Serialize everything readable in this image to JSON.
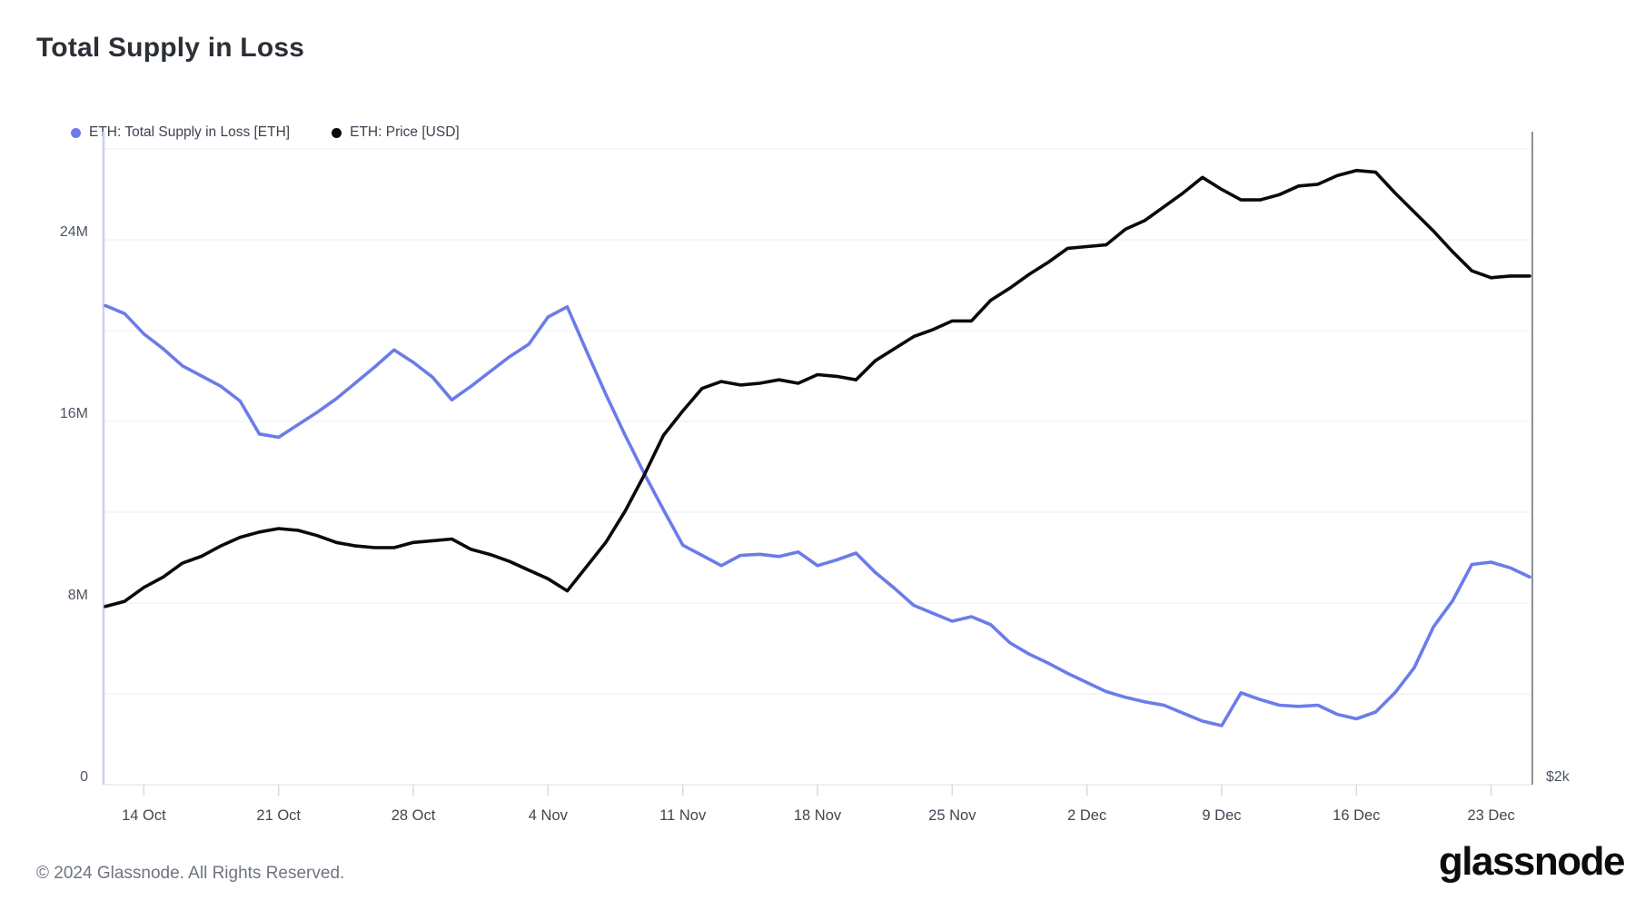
{
  "header": {
    "title": "Total Supply in Loss"
  },
  "legend": {
    "items": [
      {
        "label": "ETH: Total Supply in Loss [ETH]",
        "color": "#6b7ce9"
      },
      {
        "label": "ETH: Price [USD]",
        "color": "#0a0a0a"
      }
    ]
  },
  "footer": {
    "copyright": "© 2024 Glassnode. All Rights Reserved.",
    "brand": "glassnode"
  },
  "chart_data": {
    "type": "line",
    "title": "Total Supply in Loss",
    "grid": "horizontal-only",
    "legend_position": "top-left",
    "dates": [
      "12 Oct",
      "13 Oct",
      "14 Oct",
      "15 Oct",
      "16 Oct",
      "17 Oct",
      "18 Oct",
      "19 Oct",
      "20 Oct",
      "21 Oct",
      "22 Oct",
      "23 Oct",
      "24 Oct",
      "25 Oct",
      "26 Oct",
      "27 Oct",
      "28 Oct",
      "29 Oct",
      "30 Oct",
      "31 Oct",
      "1 Nov",
      "2 Nov",
      "3 Nov",
      "4 Nov",
      "5 Nov",
      "6 Nov",
      "7 Nov",
      "8 Nov",
      "9 Nov",
      "10 Nov",
      "11 Nov",
      "12 Nov",
      "13 Nov",
      "14 Nov",
      "15 Nov",
      "16 Nov",
      "17 Nov",
      "18 Nov",
      "19 Nov",
      "20 Nov",
      "21 Nov",
      "22 Nov",
      "23 Nov",
      "24 Nov",
      "25 Nov",
      "26 Nov",
      "27 Nov",
      "28 Nov",
      "29 Nov",
      "30 Nov",
      "1 Dec",
      "2 Dec",
      "3 Dec",
      "4 Dec",
      "5 Dec",
      "6 Dec",
      "7 Dec",
      "8 Dec",
      "9 Dec",
      "10 Dec",
      "11 Dec",
      "12 Dec",
      "13 Dec",
      "14 Dec",
      "15 Dec",
      "16 Dec",
      "17 Dec",
      "18 Dec",
      "19 Dec",
      "20 Dec",
      "21 Dec",
      "22 Dec",
      "23 Dec",
      "24 Dec",
      "25 Dec"
    ],
    "x_ticks": {
      "indices": [
        2,
        9,
        16,
        23,
        30,
        37,
        44,
        51,
        58,
        65,
        72
      ],
      "labels": [
        "14 Oct",
        "21 Oct",
        "28 Oct",
        "4 Nov",
        "11 Nov",
        "18 Nov",
        "25 Nov",
        "2 Dec",
        "9 Dec",
        "16 Dec",
        "23 Dec"
      ]
    },
    "left_axis": {
      "unit": "ETH (millions)",
      "min": 0,
      "max": 28.76,
      "gridline_step": 4,
      "tick_values": [
        0,
        8,
        16,
        24
      ],
      "tick_labels": [
        "0",
        "8M",
        "16M",
        "24M"
      ]
    },
    "right_axis": {
      "unit": "USD",
      "min": 2000,
      "max": 3887,
      "tick_values": [
        2000
      ],
      "tick_labels": [
        "$2k"
      ]
    },
    "series": [
      {
        "id": "supply-in-loss-line",
        "name": "ETH: Total Supply in Loss [ETH]",
        "axis": "left",
        "color": "#6b7ce9",
        "values": [
          21.1,
          20.75,
          19.85,
          19.2,
          18.45,
          18.0,
          17.55,
          16.9,
          15.45,
          15.3,
          15.85,
          16.4,
          17.0,
          17.7,
          18.4,
          19.15,
          18.6,
          17.95,
          16.95,
          17.55,
          18.2,
          18.85,
          19.4,
          20.6,
          21.05,
          19.1,
          17.2,
          15.4,
          13.7,
          12.1,
          10.55,
          10.1,
          9.65,
          10.1,
          10.15,
          10.05,
          10.25,
          9.65,
          9.9,
          10.2,
          9.35,
          8.65,
          7.9,
          7.55,
          7.2,
          7.4,
          7.05,
          6.25,
          5.75,
          5.35,
          4.9,
          4.5,
          4.1,
          3.85,
          3.65,
          3.5,
          3.15,
          2.8,
          2.6,
          4.05,
          3.75,
          3.5,
          3.45,
          3.5,
          3.1,
          2.9,
          3.2,
          4.05,
          5.15,
          6.95,
          8.1,
          9.7,
          9.8,
          9.55,
          9.15
        ]
      },
      {
        "id": "price-line",
        "name": "ETH: Price [USD]",
        "axis": "right",
        "color": "#0a0a0a",
        "values": [
          2515,
          2530,
          2570,
          2600,
          2640,
          2660,
          2690,
          2715,
          2730,
          2740,
          2735,
          2720,
          2700,
          2690,
          2685,
          2685,
          2700,
          2705,
          2710,
          2680,
          2665,
          2645,
          2620,
          2595,
          2560,
          2630,
          2700,
          2790,
          2895,
          3010,
          3080,
          3145,
          3165,
          3155,
          3160,
          3170,
          3160,
          3185,
          3180,
          3170,
          3225,
          3260,
          3295,
          3315,
          3340,
          3340,
          3400,
          3435,
          3475,
          3510,
          3550,
          3555,
          3560,
          3605,
          3630,
          3670,
          3710,
          3755,
          3720,
          3690,
          3690,
          3705,
          3730,
          3735,
          3760,
          3775,
          3770,
          3710,
          3655,
          3600,
          3540,
          3485,
          3465,
          3470,
          3470
        ]
      }
    ]
  }
}
